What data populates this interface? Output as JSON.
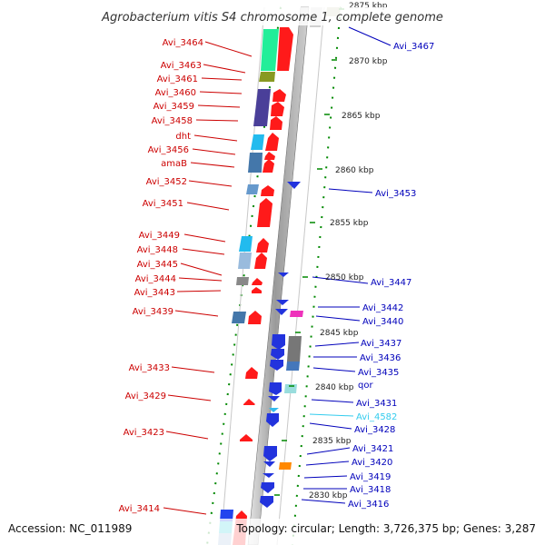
{
  "title": "Agrobacterium vitis S4 chromosome 1, complete genome",
  "footer": {
    "accession": "Accession: NC_011989",
    "summary": "Topology: circular; Length: 3,726,375 bp; Genes: 3,287"
  },
  "scale": [
    "2875 kbp",
    "2870 kbp",
    "2865 kbp",
    "2860 kbp",
    "2855 kbp",
    "2850 kbp",
    "2845 kbp",
    "2840 kbp",
    "2835 kbp",
    "2830 kbp"
  ],
  "left_genes": [
    "Avi_3464",
    "Avi_3463",
    "Avi_3461",
    "Avi_3460",
    "Avi_3459",
    "Avi_3458",
    "dht",
    "Avi_3456",
    "amaB",
    "Avi_3452",
    "Avi_3451",
    "Avi_3449",
    "Avi_3448",
    "Avi_3445",
    "Avi_3444",
    "Avi_3443",
    "Avi_3439",
    "Avi_3433",
    "Avi_3429",
    "Avi_3423",
    "Avi_3414"
  ],
  "right_genes": [
    "Avi_3467",
    "Avi_3453",
    "Avi_3447",
    "Avi_3442",
    "Avi_3440",
    "Avi_3437",
    "Avi_3436",
    "Avi_3435",
    "qor",
    "Avi_3431",
    "Avi_4582",
    "Avi_3428",
    "Avi_3421",
    "Avi_3420",
    "Avi_3419",
    "Avi_3418",
    "Avi_3416"
  ],
  "colors": {
    "forward": "#ff0000",
    "reverse": "#0000ee",
    "left_label": "#cc0000",
    "right_label": "#0000bb",
    "highlight_label": "#33ccee",
    "ticks": "#008800"
  }
}
